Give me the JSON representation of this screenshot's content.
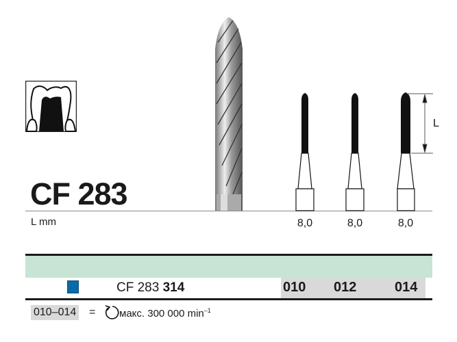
{
  "product": {
    "title": "CF 283",
    "length_label": "L mm",
    "dimension_label": "L",
    "lengths": [
      "8,0",
      "8,0",
      "8,0"
    ]
  },
  "table": {
    "color_code": "#0a6aa8",
    "band_color": "#c8e4d4",
    "ref_prefix": "CF 283",
    "ref_number": "314",
    "sizes": [
      "010",
      "012",
      "014"
    ]
  },
  "footer": {
    "range": "010–014",
    "equals": "=",
    "icon": "rotation-icon",
    "speed_text": "макс. 300 000 min",
    "speed_exponent": "–1"
  }
}
